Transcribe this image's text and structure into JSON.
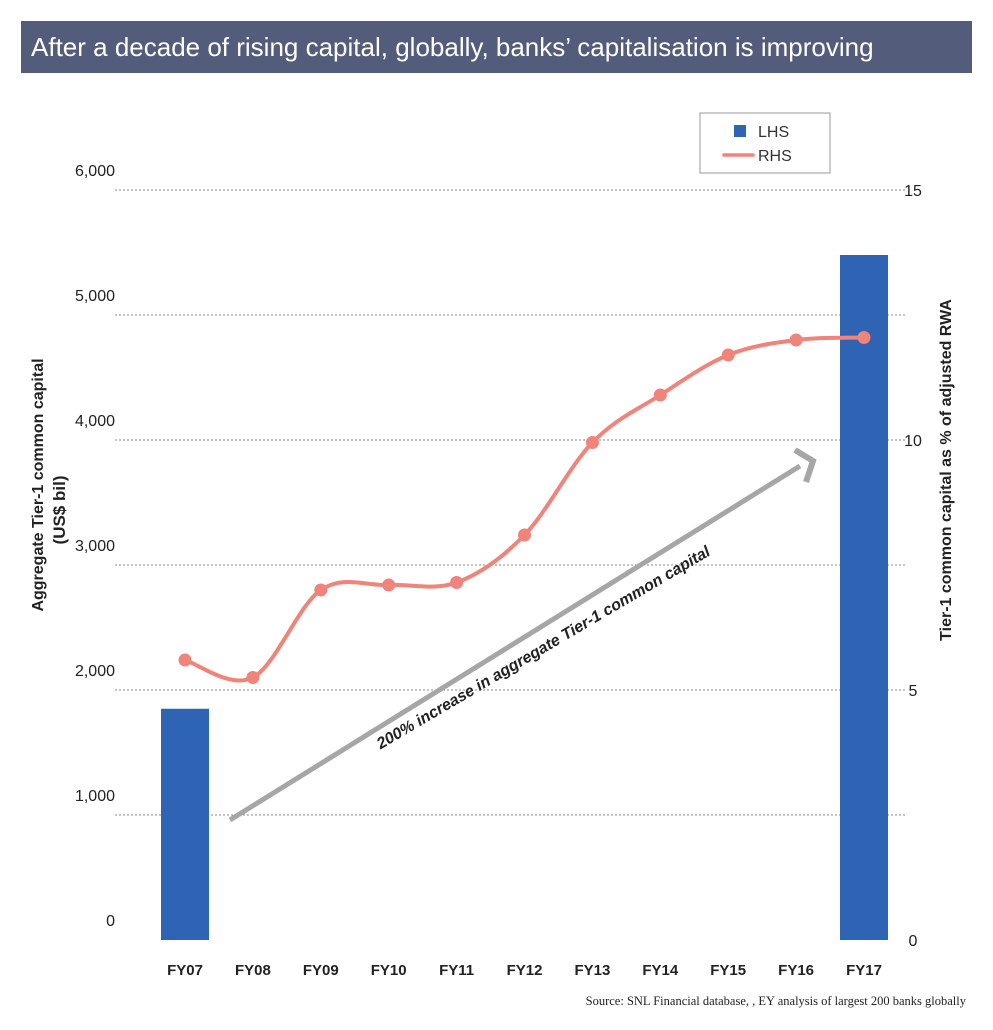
{
  "title": "After a decade of rising capital, globally, banks’ capitalisation is improving",
  "source": "Source: SNL Financial database, , EY analysis of largest 200 banks globally",
  "colors": {
    "bar": "#2e64b3",
    "line": "#f0837a",
    "title_bg": "#535c7a",
    "arrow": "#a6a6a6",
    "grid": "#888888"
  },
  "chart_data": {
    "type": "bar+line",
    "categories": [
      "FY07",
      "FY08",
      "FY09",
      "FY10",
      "FY11",
      "FY12",
      "FY13",
      "FY14",
      "FY15",
      "FY16",
      "FY17"
    ],
    "series": [
      {
        "name": "LHS",
        "type": "bar",
        "axis": "left",
        "values": [
          1850,
          null,
          null,
          null,
          null,
          null,
          null,
          null,
          null,
          null,
          5480
        ]
      },
      {
        "name": "RHS",
        "type": "line",
        "axis": "right",
        "values": [
          5.6,
          5.25,
          7.0,
          7.1,
          7.15,
          8.1,
          9.95,
          10.9,
          11.7,
          12.0,
          12.05
        ]
      }
    ],
    "ylabel_left_line1": "Aggregate Tier-1 common capital",
    "ylabel_left_line2": "(US$ bil)",
    "ylabel_right": "Tier-1 common capital as % of adjusted RWA",
    "yticks_left": [
      "0",
      "1,000",
      "2,000",
      "3,000",
      "4,000",
      "5,000",
      "6,000"
    ],
    "yticks_right": [
      "0",
      "5",
      "10",
      "15"
    ],
    "ylim_left": [
      0,
      6000
    ],
    "ylim_right": [
      0,
      15
    ],
    "annotation": "200% increase in aggregate Tier-1 common capital",
    "legend": [
      "LHS",
      "RHS"
    ],
    "legend_position": "top-right",
    "grid": "dotted horizontal"
  }
}
